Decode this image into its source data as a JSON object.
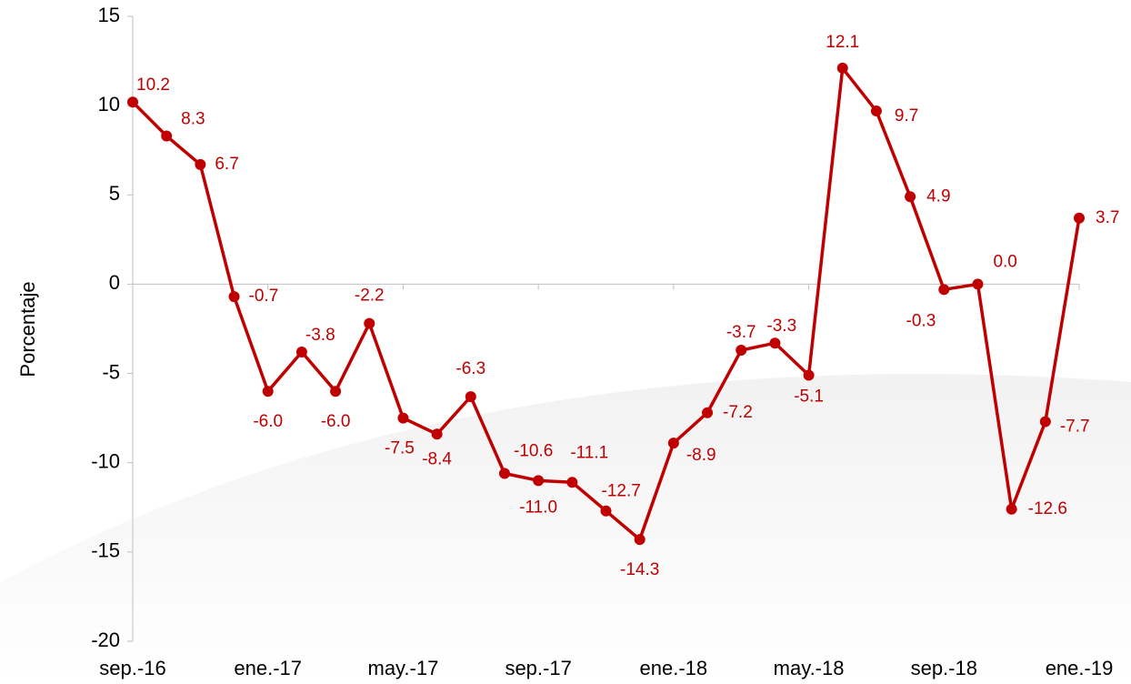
{
  "chart_data": {
    "type": "line",
    "y_label": "Porcentaje",
    "categories": [
      "sep.-16",
      null,
      null,
      null,
      "ene.-17",
      null,
      null,
      null,
      "may.-17",
      null,
      null,
      null,
      "sep.-17",
      null,
      null,
      null,
      "ene.-18",
      null,
      null,
      null,
      "may.-18",
      null,
      null,
      null,
      "sep.-18",
      null,
      null,
      null,
      "ene.-19"
    ],
    "series": [
      {
        "name": "Porcentaje",
        "color": "#c00000",
        "values": [
          10.2,
          8.3,
          6.7,
          -0.7,
          -6.0,
          -3.8,
          -6.0,
          -2.2,
          -7.5,
          -8.4,
          -6.3,
          -10.6,
          -11.0,
          -11.1,
          -12.7,
          -14.3,
          -8.9,
          -7.2,
          -3.7,
          -3.3,
          -5.1,
          12.1,
          9.7,
          4.9,
          -0.3,
          0.0,
          -12.6,
          -7.7,
          3.7
        ],
        "value_labels": [
          "10.2",
          "8.3",
          "6.7",
          "-0.7",
          "-6.0",
          "-3.8",
          "-6.0",
          "-2.2",
          "-7.5",
          "-8.4",
          "-6.3",
          "-10.6",
          "-11.0",
          "-11.1",
          "-12.7",
          "-14.3",
          "-8.9",
          "-7.2",
          "-3.7",
          "-3.3",
          "-5.1",
          "12.1",
          "9.7",
          "4.9",
          "-0.3",
          "0.0",
          "-12.6",
          "-7.7",
          "3.7"
        ]
      }
    ],
    "ylim": [
      -20,
      15
    ],
    "yticks": [
      -20,
      -15,
      -10,
      -5,
      0,
      5,
      10,
      15
    ]
  }
}
